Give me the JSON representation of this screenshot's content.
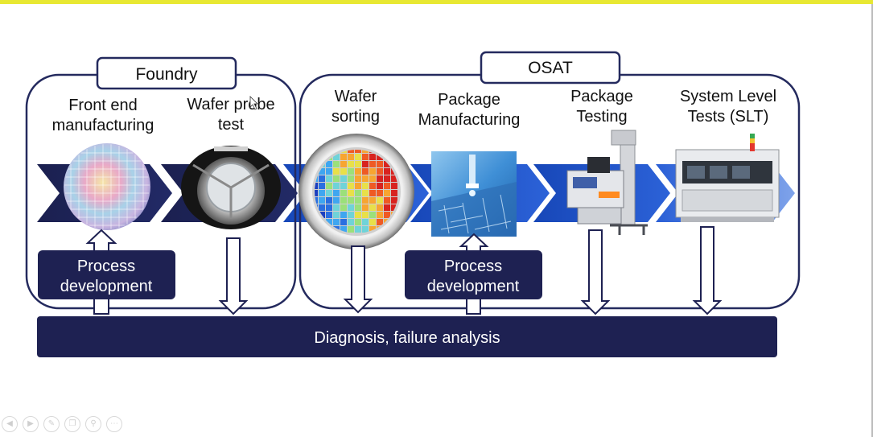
{
  "groups": {
    "foundry": "Foundry",
    "osat": "OSAT"
  },
  "stages": {
    "front_end": [
      "Front end",
      "manufacturing"
    ],
    "wafer_probe": [
      "Wafer probe",
      "test"
    ],
    "wafer_sorting": [
      "Wafer",
      "sorting"
    ],
    "package_manufacturing": [
      "Package",
      "Manufacturing"
    ],
    "package_testing": [
      "Package",
      "Testing"
    ],
    "slt": [
      "System Level",
      "Tests (SLT)"
    ]
  },
  "process_dev": {
    "left": [
      "Process",
      "development"
    ],
    "right": [
      "Process",
      "development"
    ]
  },
  "diagnosis": "Diagnosis, failure analysis",
  "colors": {
    "navy": "#1e2152",
    "blue": "#1a4fc9",
    "accent_top": "#e8e832"
  },
  "toolbar": {
    "icons": [
      "previous-icon",
      "next-icon",
      "pen-icon",
      "copy-icon",
      "zoom-icon",
      "more-icon"
    ]
  }
}
